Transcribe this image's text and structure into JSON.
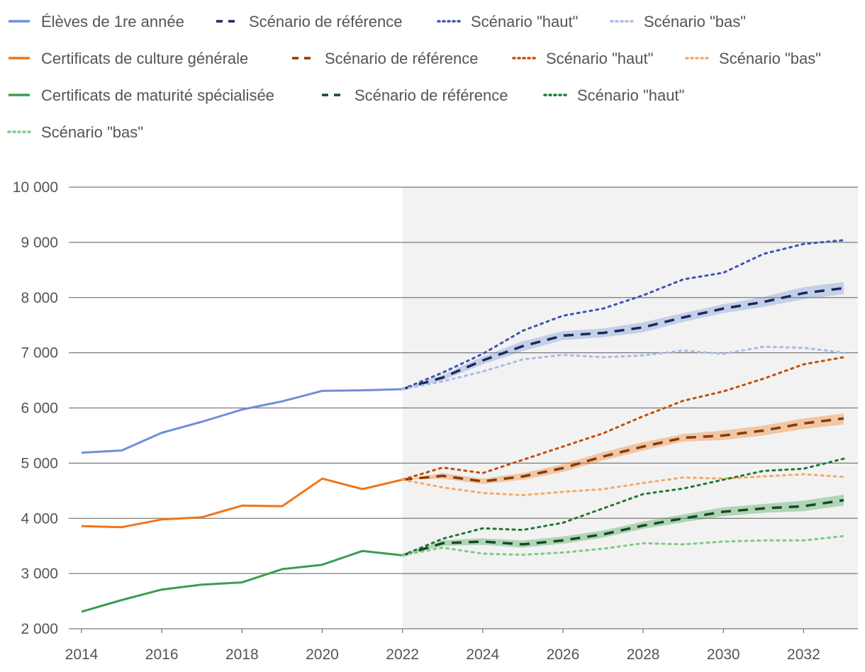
{
  "chart_data": {
    "type": "line",
    "title": "",
    "xlabel": "",
    "ylabel": "",
    "xlim": [
      2014,
      2033
    ],
    "ylim": [
      2000,
      10000
    ],
    "x_ticks": [
      2014,
      2016,
      2018,
      2020,
      2022,
      2024,
      2026,
      2028,
      2030,
      2032
    ],
    "x_tick_labels": [
      "2014",
      "2016",
      "2018",
      "2020",
      "2022",
      "2024",
      "2026",
      "2028",
      "2030",
      "2032"
    ],
    "y_ticks": [
      2000,
      3000,
      4000,
      5000,
      6000,
      7000,
      8000,
      9000,
      10000
    ],
    "y_tick_labels": [
      "2 000",
      "3 000",
      "4 000",
      "5 000",
      "6 000",
      "7 000",
      "8 000",
      "9 000",
      "10 000"
    ],
    "projection_shading_start": 2022,
    "colors": {
      "blue": "#6f8fd8",
      "blue_ref": "#1a2a5e",
      "blue_haut": "#3d55b0",
      "blue_bas": "#a9bbe8",
      "orange": "#f07518",
      "orange_ref": "#8a3a05",
      "orange_haut": "#c0500a",
      "orange_bas": "#f7a866",
      "green": "#3a9e4e",
      "green_ref": "#134d20",
      "green_haut": "#1e7a30",
      "green_bas": "#7fc98a",
      "shade": "#f2f2f2",
      "grid": "#7a7a7a"
    },
    "legend": [
      {
        "label": "Élèves de 1re année",
        "color": "#6f8fd8",
        "style": "solid"
      },
      {
        "label": "Scénario de référence",
        "color": "#1a2a5e",
        "style": "dashed"
      },
      {
        "label": "Scénario \"haut\"",
        "color": "#3d55b0",
        "style": "dotted"
      },
      {
        "label": "Scénario \"bas\"",
        "color": "#a9bbe8",
        "style": "dotted"
      },
      {
        "label": "Certificats de culture générale",
        "color": "#f07518",
        "style": "solid"
      },
      {
        "label": "Scénario de référence",
        "color": "#8a3a05",
        "style": "dashed"
      },
      {
        "label": "Scénario \"haut\"",
        "color": "#c0500a",
        "style": "dotted"
      },
      {
        "label": "Scénario \"bas\"",
        "color": "#f7a866",
        "style": "dotted"
      },
      {
        "label": "Certificats de maturité spécialisée",
        "color": "#3a9e4e",
        "style": "solid"
      },
      {
        "label": "Scénario de référence",
        "color": "#134d20",
        "style": "dashed"
      },
      {
        "label": "Scénario \"haut\"",
        "color": "#1e7a30",
        "style": "dotted"
      },
      {
        "label": "Scénario \"bas\"",
        "color": "#7fc98a",
        "style": "dotted"
      }
    ],
    "series": [
      {
        "name": "Élèves de 1re année",
        "color": "#6f8fd8",
        "style": "solid",
        "x": [
          2014,
          2015,
          2016,
          2017,
          2018,
          2019,
          2020,
          2021,
          2022
        ],
        "values": [
          5190,
          5230,
          5550,
          5750,
          5970,
          6120,
          6310,
          6320,
          6340
        ]
      },
      {
        "name": "Élèves de 1re année - Scénario de référence",
        "color": "#1a2a5e",
        "style": "dashed",
        "x": [
          2022,
          2023,
          2024,
          2025,
          2026,
          2027,
          2028,
          2029,
          2030,
          2031,
          2032,
          2033
        ],
        "values": [
          6340,
          6550,
          6860,
          7120,
          7310,
          7360,
          7460,
          7640,
          7800,
          7920,
          8080,
          8170
        ],
        "band_low": [
          6340,
          6500,
          6790,
          7030,
          7230,
          7280,
          7370,
          7560,
          7720,
          7830,
          7970,
          8060
        ],
        "band_high": [
          6340,
          6600,
          6930,
          7210,
          7390,
          7440,
          7550,
          7720,
          7880,
          8010,
          8190,
          8280
        ]
      },
      {
        "name": "Élèves de 1re année - Scénario \"haut\"",
        "color": "#3d55b0",
        "style": "dotted",
        "x": [
          2022,
          2023,
          2024,
          2025,
          2026,
          2027,
          2028,
          2029,
          2030,
          2031,
          2032,
          2033
        ],
        "values": [
          6340,
          6640,
          6980,
          7400,
          7670,
          7800,
          8040,
          8330,
          8450,
          8790,
          8970,
          9040
        ]
      },
      {
        "name": "Élèves de 1re année - Scénario \"bas\"",
        "color": "#a9bbe8",
        "style": "dotted",
        "x": [
          2022,
          2023,
          2024,
          2025,
          2026,
          2027,
          2028,
          2029,
          2030,
          2031,
          2032,
          2033
        ],
        "values": [
          6340,
          6480,
          6660,
          6880,
          6960,
          6920,
          6950,
          7040,
          6980,
          7110,
          7090,
          7000
        ]
      },
      {
        "name": "Certificats de culture générale",
        "color": "#f07518",
        "style": "solid",
        "x": [
          2014,
          2015,
          2016,
          2017,
          2018,
          2019,
          2020,
          2021,
          2022
        ],
        "values": [
          3860,
          3840,
          3980,
          4020,
          4230,
          4220,
          4720,
          4530,
          4700
        ]
      },
      {
        "name": "Certificats de culture générale - Scénario de référence",
        "color": "#8a3a05",
        "style": "dashed",
        "x": [
          2022,
          2023,
          2024,
          2025,
          2026,
          2027,
          2028,
          2029,
          2030,
          2031,
          2032,
          2033
        ],
        "values": [
          4700,
          4770,
          4670,
          4760,
          4910,
          5120,
          5300,
          5460,
          5500,
          5590,
          5720,
          5810
        ],
        "band_low": [
          4700,
          4720,
          4620,
          4700,
          4840,
          5050,
          5230,
          5390,
          5420,
          5500,
          5620,
          5700
        ],
        "band_high": [
          4700,
          4820,
          4720,
          4820,
          4980,
          5200,
          5380,
          5530,
          5590,
          5680,
          5810,
          5900
        ]
      },
      {
        "name": "Certificats de culture générale - Scénario \"haut\"",
        "color": "#c0500a",
        "style": "dotted",
        "x": [
          2022,
          2023,
          2024,
          2025,
          2026,
          2027,
          2028,
          2029,
          2030,
          2031,
          2032,
          2033
        ],
        "values": [
          4700,
          4920,
          4820,
          5060,
          5300,
          5540,
          5850,
          6130,
          6300,
          6530,
          6790,
          6920
        ]
      },
      {
        "name": "Certificats de culture générale - Scénario \"bas\"",
        "color": "#f7a866",
        "style": "dotted",
        "x": [
          2022,
          2023,
          2024,
          2025,
          2026,
          2027,
          2028,
          2029,
          2030,
          2031,
          2032,
          2033
        ],
        "values": [
          4700,
          4560,
          4460,
          4420,
          4480,
          4530,
          4640,
          4740,
          4720,
          4760,
          4800,
          4750
        ]
      },
      {
        "name": "Certificats de maturité spécialisée",
        "color": "#3a9e4e",
        "style": "solid",
        "x": [
          2014,
          2015,
          2016,
          2017,
          2018,
          2019,
          2020,
          2021,
          2022
        ],
        "values": [
          2310,
          2520,
          2710,
          2800,
          2840,
          3080,
          3160,
          3410,
          3330
        ]
      },
      {
        "name": "Certificats de maturité spécialisée - Scénario de référence",
        "color": "#134d20",
        "style": "dashed",
        "x": [
          2022,
          2023,
          2024,
          2025,
          2026,
          2027,
          2028,
          2029,
          2030,
          2031,
          2032,
          2033
        ],
        "values": [
          3330,
          3550,
          3580,
          3530,
          3600,
          3710,
          3870,
          4000,
          4120,
          4180,
          4220,
          4330
        ],
        "band_low": [
          3330,
          3500,
          3520,
          3470,
          3540,
          3650,
          3810,
          3930,
          4040,
          4100,
          4130,
          4230
        ],
        "band_high": [
          3330,
          3600,
          3640,
          3600,
          3670,
          3780,
          3940,
          4070,
          4200,
          4260,
          4320,
          4430
        ]
      },
      {
        "name": "Certificats de maturité spécialisée - Scénario \"haut\"",
        "color": "#1e7a30",
        "style": "dotted",
        "x": [
          2022,
          2023,
          2024,
          2025,
          2026,
          2027,
          2028,
          2029,
          2030,
          2031,
          2032,
          2033
        ],
        "values": [
          3330,
          3630,
          3820,
          3790,
          3920,
          4180,
          4440,
          4540,
          4700,
          4860,
          4900,
          5080
        ]
      },
      {
        "name": "Certificats de maturité spécialisée - Scénario \"bas\"",
        "color": "#7fc98a",
        "style": "dotted",
        "x": [
          2022,
          2023,
          2024,
          2025,
          2026,
          2027,
          2028,
          2029,
          2030,
          2031,
          2032,
          2033
        ],
        "values": [
          3330,
          3470,
          3360,
          3340,
          3380,
          3450,
          3550,
          3530,
          3580,
          3600,
          3600,
          3680
        ]
      }
    ]
  }
}
